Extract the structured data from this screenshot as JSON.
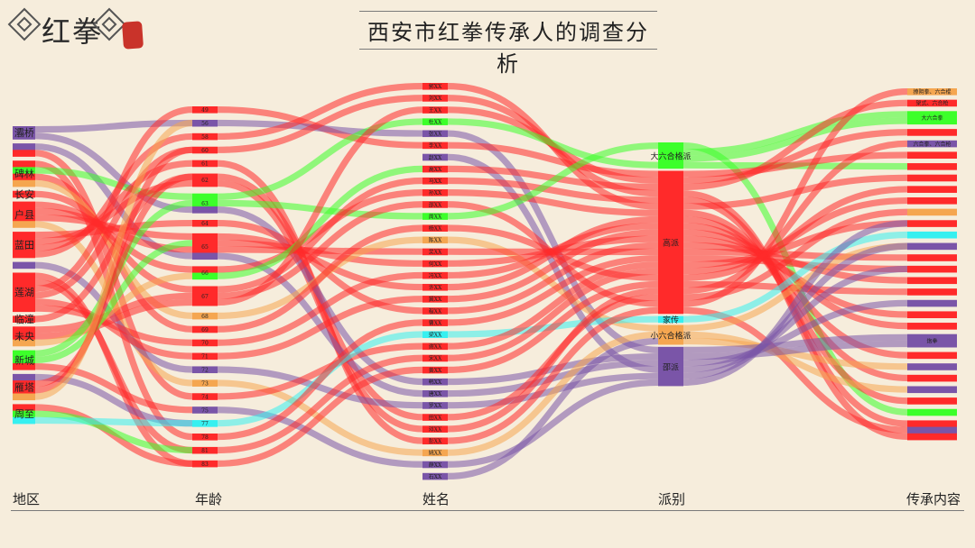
{
  "header": {
    "logo_text": "红拳",
    "title": "西安市红拳传承人的调查分析"
  },
  "chart_data": {
    "type": "sankey",
    "title": "西安市红拳传承人的调查分析",
    "stages": [
      "地区",
      "年龄",
      "姓名",
      "派别",
      "传承内容"
    ],
    "colors": {
      "red": "#ff2a2a",
      "purple": "#7a55a8",
      "green": "#3cff2a",
      "orange": "#f5a650",
      "cyan": "#36f0f0"
    },
    "columns": [
      {
        "name": "地区",
        "nodes": [
          {
            "label": "灞桥",
            "flows": [
              "purple",
              "purple"
            ]
          },
          {
            "label": "",
            "flows": [
              "purple",
              "red"
            ]
          },
          {
            "label": "碑林",
            "flows": [
              "red",
              "green",
              "red",
              "orange"
            ]
          },
          {
            "label": "长安",
            "flows": [
              "red"
            ]
          },
          {
            "label": "户县",
            "flows": [
              "red",
              "red",
              "red",
              "orange"
            ]
          },
          {
            "label": "蓝田",
            "flows": [
              "red",
              "red",
              "red",
              "red"
            ]
          },
          {
            "label": "",
            "flows": [
              "purple"
            ]
          },
          {
            "label": "莲湖",
            "flows": [
              "red",
              "red",
              "red",
              "red",
              "red",
              "red"
            ]
          },
          {
            "label": "临潼",
            "flows": [
              "red"
            ]
          },
          {
            "label": "未央",
            "flows": [
              "red",
              "red",
              "orange"
            ]
          },
          {
            "label": "新城",
            "flows": [
              "green",
              "green",
              "red"
            ]
          },
          {
            "label": "雁塔",
            "flows": [
              "purple",
              "red",
              "red",
              "orange"
            ]
          },
          {
            "label": "周至",
            "flows": [
              "red",
              "green",
              "cyan"
            ]
          }
        ]
      },
      {
        "name": "年龄",
        "nodes": [
          {
            "label": "49",
            "flows": [
              "red"
            ]
          },
          {
            "label": "56",
            "flows": [
              "purple"
            ]
          },
          {
            "label": "58",
            "flows": [
              "red"
            ]
          },
          {
            "label": "60",
            "flows": [
              "red"
            ]
          },
          {
            "label": "61",
            "flows": [
              "red"
            ]
          },
          {
            "label": "62",
            "flows": [
              "red",
              "red"
            ]
          },
          {
            "label": "63",
            "flows": [
              "green",
              "green",
              "purple"
            ]
          },
          {
            "label": "64",
            "flows": [
              "red"
            ]
          },
          {
            "label": "65",
            "flows": [
              "red",
              "red",
              "red",
              "purple"
            ]
          },
          {
            "label": "66",
            "flows": [
              "red",
              "green"
            ]
          },
          {
            "label": "67",
            "flows": [
              "red",
              "red",
              "red"
            ]
          },
          {
            "label": "68",
            "flows": [
              "orange"
            ]
          },
          {
            "label": "69",
            "flows": [
              "red"
            ]
          },
          {
            "label": "70",
            "flows": [
              "red"
            ]
          },
          {
            "label": "71",
            "flows": [
              "red"
            ]
          },
          {
            "label": "72",
            "flows": [
              "purple"
            ]
          },
          {
            "label": "73",
            "flows": [
              "orange"
            ]
          },
          {
            "label": "74",
            "flows": [
              "red"
            ]
          },
          {
            "label": "75",
            "flows": [
              "purple"
            ]
          },
          {
            "label": "77",
            "flows": [
              "cyan"
            ]
          },
          {
            "label": "78",
            "flows": [
              "red"
            ]
          },
          {
            "label": "81",
            "flows": [
              "red"
            ]
          },
          {
            "label": "83",
            "flows": [
              "red"
            ]
          }
        ]
      },
      {
        "name": "姓名",
        "nodes": [
          {
            "label": "郭XX",
            "flows": [
              "red"
            ]
          },
          {
            "label": "刘XX",
            "flows": [
              "red"
            ]
          },
          {
            "label": "王XX",
            "flows": [
              "red"
            ]
          },
          {
            "label": "杜XX",
            "flows": [
              "green"
            ]
          },
          {
            "label": "张XX",
            "flows": [
              "purple"
            ]
          },
          {
            "label": "李XX",
            "flows": [
              "red"
            ]
          },
          {
            "label": "赵XX",
            "flows": [
              "purple"
            ]
          },
          {
            "label": "高XX",
            "flows": [
              "red"
            ]
          },
          {
            "label": "马XX",
            "flows": [
              "red"
            ]
          },
          {
            "label": "孙XX",
            "flows": [
              "red"
            ]
          },
          {
            "label": "邵XX",
            "flows": [
              "red"
            ]
          },
          {
            "label": "周XX",
            "flows": [
              "green"
            ]
          },
          {
            "label": "杨XX",
            "flows": [
              "red"
            ]
          },
          {
            "label": "陈XX",
            "flows": [
              "orange"
            ]
          },
          {
            "label": "吴XX",
            "flows": [
              "red"
            ]
          },
          {
            "label": "何XX",
            "flows": [
              "red"
            ]
          },
          {
            "label": "冯XX",
            "flows": [
              "red"
            ]
          },
          {
            "label": "许XX",
            "flows": [
              "red"
            ]
          },
          {
            "label": "冀XX",
            "flows": [
              "red"
            ]
          },
          {
            "label": "程XX",
            "flows": [
              "red"
            ]
          },
          {
            "label": "曹XX",
            "flows": [
              "red"
            ]
          },
          {
            "label": "梁XX",
            "flows": [
              "cyan"
            ]
          },
          {
            "label": "谢XX",
            "flows": [
              "red"
            ]
          },
          {
            "label": "宋XX",
            "flows": [
              "red"
            ]
          },
          {
            "label": "黄XX",
            "flows": [
              "red"
            ]
          },
          {
            "label": "韩XX",
            "flows": [
              "purple"
            ]
          },
          {
            "label": "唐XX",
            "flows": [
              "purple"
            ]
          },
          {
            "label": "罗XX",
            "flows": [
              "purple"
            ]
          },
          {
            "label": "田XX",
            "flows": [
              "red"
            ]
          },
          {
            "label": "邓XX",
            "flows": [
              "red"
            ]
          },
          {
            "label": "彭XX",
            "flows": [
              "red"
            ]
          },
          {
            "label": "姚XX",
            "flows": [
              "orange"
            ]
          },
          {
            "label": "薛XX",
            "flows": [
              "purple"
            ]
          },
          {
            "label": "石XX",
            "flows": [
              "purple"
            ]
          }
        ]
      },
      {
        "name": "派别",
        "nodes": [
          {
            "label": "大六合格派",
            "flows": [
              "green",
              "green",
              "green",
              "green"
            ]
          },
          {
            "label": "高派",
            "flows": [
              "red",
              "red",
              "red",
              "red",
              "red",
              "red",
              "red",
              "red",
              "red",
              "red",
              "red",
              "red",
              "red",
              "red",
              "red",
              "red",
              "red",
              "red",
              "red",
              "red",
              "red",
              "red"
            ]
          },
          {
            "label": "家传",
            "flows": [
              "cyan"
            ]
          },
          {
            "label": "小六合格派",
            "flows": [
              "orange",
              "orange",
              "orange"
            ]
          },
          {
            "label": "邵派",
            "flows": [
              "purple",
              "purple",
              "purple",
              "purple",
              "purple",
              "purple"
            ]
          }
        ]
      },
      {
        "name": "传承内容",
        "nodes": [
          {
            "label": "撩阴拳、六合棍",
            "flows": [
              "orange"
            ]
          },
          {
            "label": "架式、六合枪",
            "flows": [
              "red"
            ]
          },
          {
            "label": "大六合拳",
            "flows": [
              "green",
              "green"
            ]
          },
          {
            "label": "",
            "flows": [
              "red"
            ]
          },
          {
            "label": "六合拳、六合枪",
            "flows": [
              "purple"
            ]
          },
          {
            "label": "",
            "flows": [
              "red"
            ]
          },
          {
            "label": "",
            "flows": [
              "red"
            ]
          },
          {
            "label": "",
            "flows": [
              "red"
            ]
          },
          {
            "label": "",
            "flows": [
              "red"
            ]
          },
          {
            "label": "",
            "flows": [
              "red"
            ]
          },
          {
            "label": "",
            "flows": [
              "orange"
            ]
          },
          {
            "label": "",
            "flows": [
              "red"
            ]
          },
          {
            "label": "",
            "flows": [
              "cyan"
            ]
          },
          {
            "label": "",
            "flows": [
              "purple"
            ]
          },
          {
            "label": "",
            "flows": [
              "red"
            ]
          },
          {
            "label": "",
            "flows": [
              "red"
            ]
          },
          {
            "label": "",
            "flows": [
              "red"
            ]
          },
          {
            "label": "",
            "flows": [
              "red"
            ]
          },
          {
            "label": "",
            "flows": [
              "purple"
            ]
          },
          {
            "label": "",
            "flows": [
              "red"
            ]
          },
          {
            "label": "",
            "flows": [
              "red"
            ]
          },
          {
            "label": "炮拳",
            "flows": [
              "purple",
              "purple"
            ]
          },
          {
            "label": "",
            "flows": [
              "red"
            ]
          },
          {
            "label": "",
            "flows": [
              "purple"
            ]
          },
          {
            "label": "",
            "flows": [
              "red"
            ]
          },
          {
            "label": "",
            "flows": [
              "purple"
            ]
          },
          {
            "label": "",
            "flows": [
              "red"
            ]
          },
          {
            "label": "",
            "flows": [
              "green"
            ]
          },
          {
            "label": "",
            "flows": [
              "red",
              "purple",
              "red"
            ]
          }
        ]
      }
    ]
  }
}
